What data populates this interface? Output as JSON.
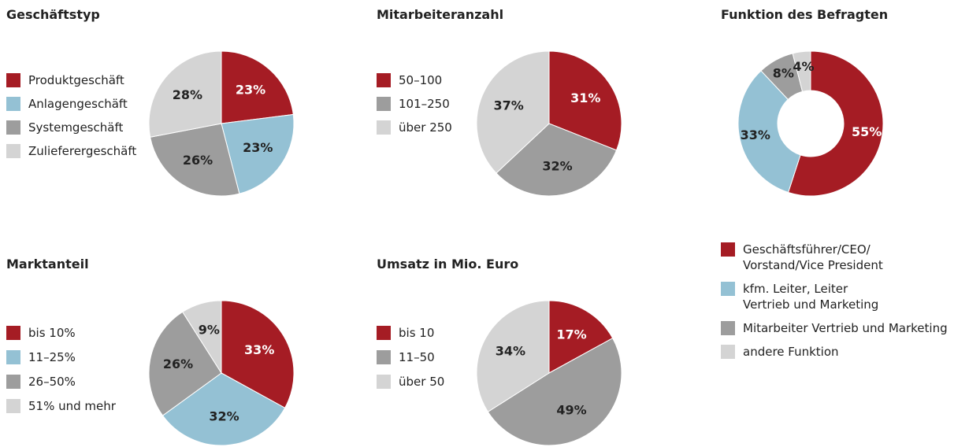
{
  "chart_data": [
    {
      "type": "pie",
      "title": "Geschäftstyp",
      "categories": [
        "Produktgeschäft",
        "Anlagengeschäft",
        "Systemgeschäft",
        "Zulieferergeschäft"
      ],
      "values": [
        23,
        23,
        26,
        28
      ],
      "value_labels": [
        "23%",
        "23%",
        "26%",
        "28%"
      ],
      "colors": [
        "#a51c24",
        "#94c1d4",
        "#9d9d9d",
        "#d4d4d4"
      ]
    },
    {
      "type": "pie",
      "title": "Mitarbeiteranzahl",
      "categories": [
        "50–100",
        "101–250",
        "über 250"
      ],
      "values": [
        31,
        32,
        37
      ],
      "value_labels": [
        "31%",
        "32%",
        "37%"
      ],
      "colors": [
        "#a51c24",
        "#9d9d9d",
        "#d4d4d4"
      ]
    },
    {
      "type": "donut",
      "title": "Funktion des Befragten",
      "categories": [
        "Geschäftsführer/CEO/\nVorstand/Vice President",
        "kfm. Leiter, Leiter\nVertrieb und Marketing",
        "Mitarbeiter Vertrieb und Marketing",
        "andere Funktion"
      ],
      "values": [
        55,
        33,
        8,
        4
      ],
      "value_labels": [
        "55%",
        "33%",
        "8%",
        "4%"
      ],
      "colors": [
        "#a51c24",
        "#94c1d4",
        "#9d9d9d",
        "#d4d4d4"
      ]
    },
    {
      "type": "pie",
      "title": "Marktanteil",
      "categories": [
        "bis 10%",
        "11–25%",
        "26–50%",
        "51% und mehr"
      ],
      "values": [
        33,
        32,
        26,
        9
      ],
      "value_labels": [
        "33%",
        "32%",
        "26%",
        "9%"
      ],
      "colors": [
        "#a51c24",
        "#94c1d4",
        "#9d9d9d",
        "#d4d4d4"
      ]
    },
    {
      "type": "pie",
      "title": "Umsatz in Mio. Euro",
      "categories": [
        "bis 10",
        "11–50",
        "über 50"
      ],
      "values": [
        17,
        49,
        34
      ],
      "value_labels": [
        "17%",
        "49%",
        "34%"
      ],
      "colors": [
        "#a51c24",
        "#9d9d9d",
        "#d4d4d4"
      ]
    }
  ]
}
